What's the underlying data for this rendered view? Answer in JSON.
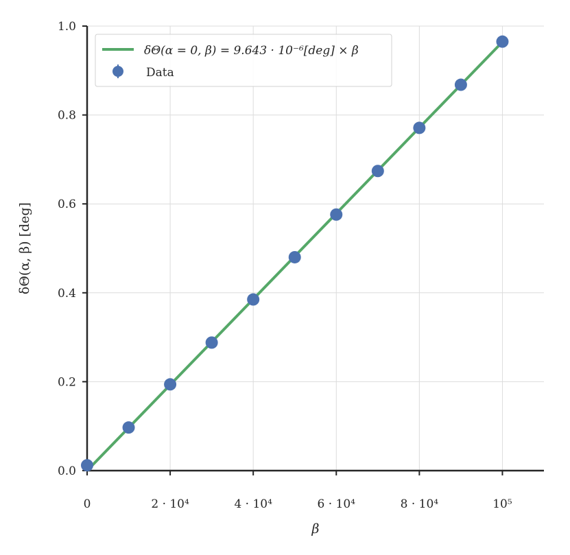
{
  "chart_data": {
    "type": "scatter",
    "title": "",
    "xlabel": "β",
    "ylabel": "δΘ(α, β) [deg]",
    "xlim": [
      0,
      110000
    ],
    "ylim": [
      0,
      1.0
    ],
    "grid": true,
    "legend_position": "top-left",
    "x_ticks": [
      {
        "value": 0,
        "label": "0"
      },
      {
        "value": 20000,
        "label": "2 · 10⁴"
      },
      {
        "value": 40000,
        "label": "4 · 10⁴"
      },
      {
        "value": 60000,
        "label": "6 · 10⁴"
      },
      {
        "value": 80000,
        "label": "8 · 10⁴"
      },
      {
        "value": 100000,
        "label": "10⁵"
      }
    ],
    "y_ticks": [
      {
        "value": 0.0,
        "label": "0.0"
      },
      {
        "value": 0.2,
        "label": "0.2"
      },
      {
        "value": 0.4,
        "label": "0.4"
      },
      {
        "value": 0.6,
        "label": "0.6"
      },
      {
        "value": 0.8,
        "label": "0.8"
      },
      {
        "value": 1.0,
        "label": "1.0"
      }
    ],
    "series": [
      {
        "name": "δΘ(α = 0, β) = 9.643 · 10⁻⁶[deg] × β",
        "kind": "line",
        "color": "#55a868",
        "slope": 9.643e-06,
        "x": [
          0,
          100000
        ],
        "y": [
          0,
          0.9643
        ]
      },
      {
        "name": "Data",
        "kind": "scatter",
        "color": "#4c72b0",
        "x": [
          0,
          10000,
          20000,
          30000,
          40000,
          50000,
          60000,
          70000,
          80000,
          90000,
          100000
        ],
        "y": [
          0.012,
          0.097,
          0.194,
          0.288,
          0.385,
          0.48,
          0.576,
          0.674,
          0.771,
          0.868,
          0.965
        ]
      }
    ]
  }
}
